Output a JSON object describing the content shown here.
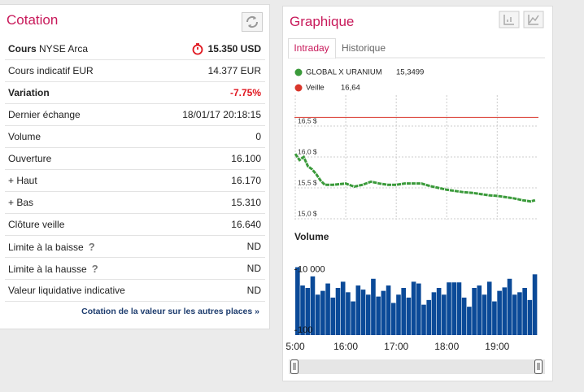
{
  "cotation": {
    "title": "Cotation",
    "rows": [
      {
        "label": "Cours",
        "sublabel": "NYSE Arca",
        "value": "15.350 USD",
        "bold": true
      },
      {
        "label": "Cours indicatif EUR",
        "value": "14.377 EUR"
      },
      {
        "label": "Variation",
        "value": "-7.75%",
        "bold": true,
        "color": "#e0161f"
      },
      {
        "label": "Dernier échange",
        "value": "18/01/17 20:18:15"
      },
      {
        "label": "Volume",
        "value": "0"
      },
      {
        "label": "Ouverture",
        "value": "16.100"
      },
      {
        "label": "+ Haut",
        "value": "16.170"
      },
      {
        "label": "+ Bas",
        "value": "15.310"
      },
      {
        "label": "Clôture veille",
        "value": "16.640"
      },
      {
        "label": "Limite à la baisse",
        "help": "?",
        "value": "ND"
      },
      {
        "label": "Limite à la hausse",
        "help": "?",
        "value": "ND"
      },
      {
        "label": "Valeur liquidative indicative",
        "value": "ND"
      }
    ],
    "footer_link": "Cotation de la valeur sur les autres places »"
  },
  "graphique": {
    "title": "Graphique",
    "tabs": [
      "Intraday",
      "Historique"
    ]
  },
  "chart_data": {
    "type": "line",
    "series": [
      {
        "name": "GLOBAL X URANIUM",
        "last": "15,3499",
        "color": "#3a9a3a",
        "x": [
          "15:00",
          "15:05",
          "15:10",
          "15:15",
          "15:20",
          "15:25",
          "15:30",
          "15:35",
          "15:45",
          "16:00",
          "16:10",
          "16:20",
          "16:30",
          "16:40",
          "16:50",
          "17:00",
          "17:10",
          "17:20",
          "17:30",
          "17:40",
          "17:50",
          "18:00",
          "18:10",
          "18:20",
          "18:30",
          "18:40",
          "18:50",
          "19:00",
          "19:10",
          "19:20",
          "19:30",
          "19:40",
          "19:45"
        ],
        "values": [
          16.05,
          15.95,
          16.0,
          15.85,
          15.8,
          15.72,
          15.62,
          15.55,
          15.55,
          15.57,
          15.52,
          15.55,
          15.6,
          15.57,
          15.55,
          15.55,
          15.57,
          15.57,
          15.57,
          15.53,
          15.5,
          15.47,
          15.45,
          15.43,
          15.42,
          15.4,
          15.38,
          15.37,
          15.35,
          15.33,
          15.3,
          15.28,
          15.3
        ]
      }
    ],
    "reference": {
      "name": "Veille",
      "label": "16,64",
      "value": 16.64,
      "color": "#d9362b"
    },
    "xlim": [
      "14:59",
      "19:49"
    ],
    "xticks": [
      {
        "value": "15:00",
        "label": "5:00"
      },
      "16:00",
      "17:00",
      "18:00",
      "19:00"
    ],
    "ylim": [
      15,
      17
    ],
    "yticks": [
      {
        "value": 15.0,
        "label": "15,0 $"
      },
      {
        "value": 15.5,
        "label": "15,5 $"
      },
      {
        "value": 16.0,
        "label": "16,0 $"
      },
      {
        "value": 16.5,
        "label": "16,5 $"
      }
    ],
    "grid": true,
    "volume": {
      "title": "Volume",
      "color": "#0b4a98",
      "log": true,
      "ylim": [
        70,
        18000
      ],
      "yticks": [
        {
          "value": 100,
          "label": "100"
        },
        {
          "value": 10000,
          "label": "10 000"
        }
      ],
      "x": [
        "15:00",
        "15:06",
        "15:12",
        "15:18",
        "15:24",
        "15:30",
        "15:36",
        "15:42",
        "15:48",
        "15:54",
        "16:00",
        "16:06",
        "16:12",
        "16:18",
        "16:24",
        "16:30",
        "16:36",
        "16:42",
        "16:48",
        "16:54",
        "17:00",
        "17:06",
        "17:12",
        "17:18",
        "17:24",
        "17:30",
        "17:36",
        "17:42",
        "17:48",
        "17:54",
        "18:00",
        "18:06",
        "18:12",
        "18:18",
        "18:24",
        "18:30",
        "18:36",
        "18:42",
        "18:48",
        "18:54",
        "19:00",
        "19:06",
        "19:12",
        "19:18",
        "19:24",
        "19:30",
        "19:36",
        "19:42"
      ],
      "values": [
        12000,
        3000,
        2500,
        6000,
        1500,
        2000,
        3500,
        1200,
        2500,
        4000,
        1800,
        900,
        3000,
        2200,
        1500,
        5000,
        1300,
        2000,
        3000,
        800,
        1500,
        2500,
        1200,
        4000,
        3500,
        700,
        1000,
        1800,
        2500,
        1500,
        3800,
        3800,
        3800,
        1200,
        600,
        2500,
        3000,
        1500,
        4000,
        900,
        2000,
        2600,
        5000,
        1500,
        1800,
        2500,
        1000,
        7000
      ]
    }
  }
}
